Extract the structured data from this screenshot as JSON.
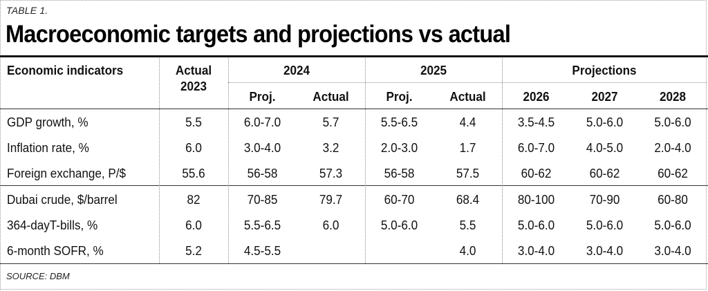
{
  "table_label": "TABLE 1.",
  "title": "Macroeconomic targets and projections vs actual",
  "header": {
    "indicator_col": "Economic indicators",
    "actual2023_line1": "Actual",
    "actual2023_line2": "2023",
    "group_2024": "2024",
    "group_2025": "2025",
    "group_projections": "Projections",
    "sub": [
      "Proj.",
      "Actual",
      "Proj.",
      "Actual",
      "2026",
      "2027",
      "2028"
    ]
  },
  "rows": [
    {
      "label": "GDP growth, %",
      "values": [
        "5.5",
        "6.0-7.0",
        "5.7",
        "5.5-6.5",
        "4.4",
        "3.5-4.5",
        "5.0-6.0",
        "5.0-6.0"
      ]
    },
    {
      "label": "Inflation rate, %",
      "values": [
        "6.0",
        "3.0-4.0",
        "3.2",
        "2.0-3.0",
        "1.7",
        "6.0-7.0",
        "4.0-5.0",
        "2.0-4.0"
      ]
    },
    {
      "label": "Foreign exchange, P/$",
      "values": [
        "55.6",
        "56-58",
        "57.3",
        "56-58",
        "57.5",
        "60-62",
        "60-62",
        "60-62"
      ]
    },
    {
      "label": "Dubai crude, $/barrel",
      "values": [
        "82",
        "70-85",
        "79.7",
        "60-70",
        "68.4",
        "80-100",
        "70-90",
        "60-80"
      ]
    },
    {
      "label": "364-dayT-bills, %",
      "values": [
        "6.0",
        "5.5-6.5",
        "6.0",
        "5.0-6.0",
        "5.5",
        "5.0-6.0",
        "5.0-6.0",
        "5.0-6.0"
      ]
    },
    {
      "label": "6-month SOFR, %",
      "values": [
        "5.2",
        "4.5-5.5",
        "",
        "",
        "4.0",
        "3.0-4.0",
        "3.0-4.0",
        "3.0-4.0"
      ]
    }
  ],
  "source": "SOURCE: DBM"
}
